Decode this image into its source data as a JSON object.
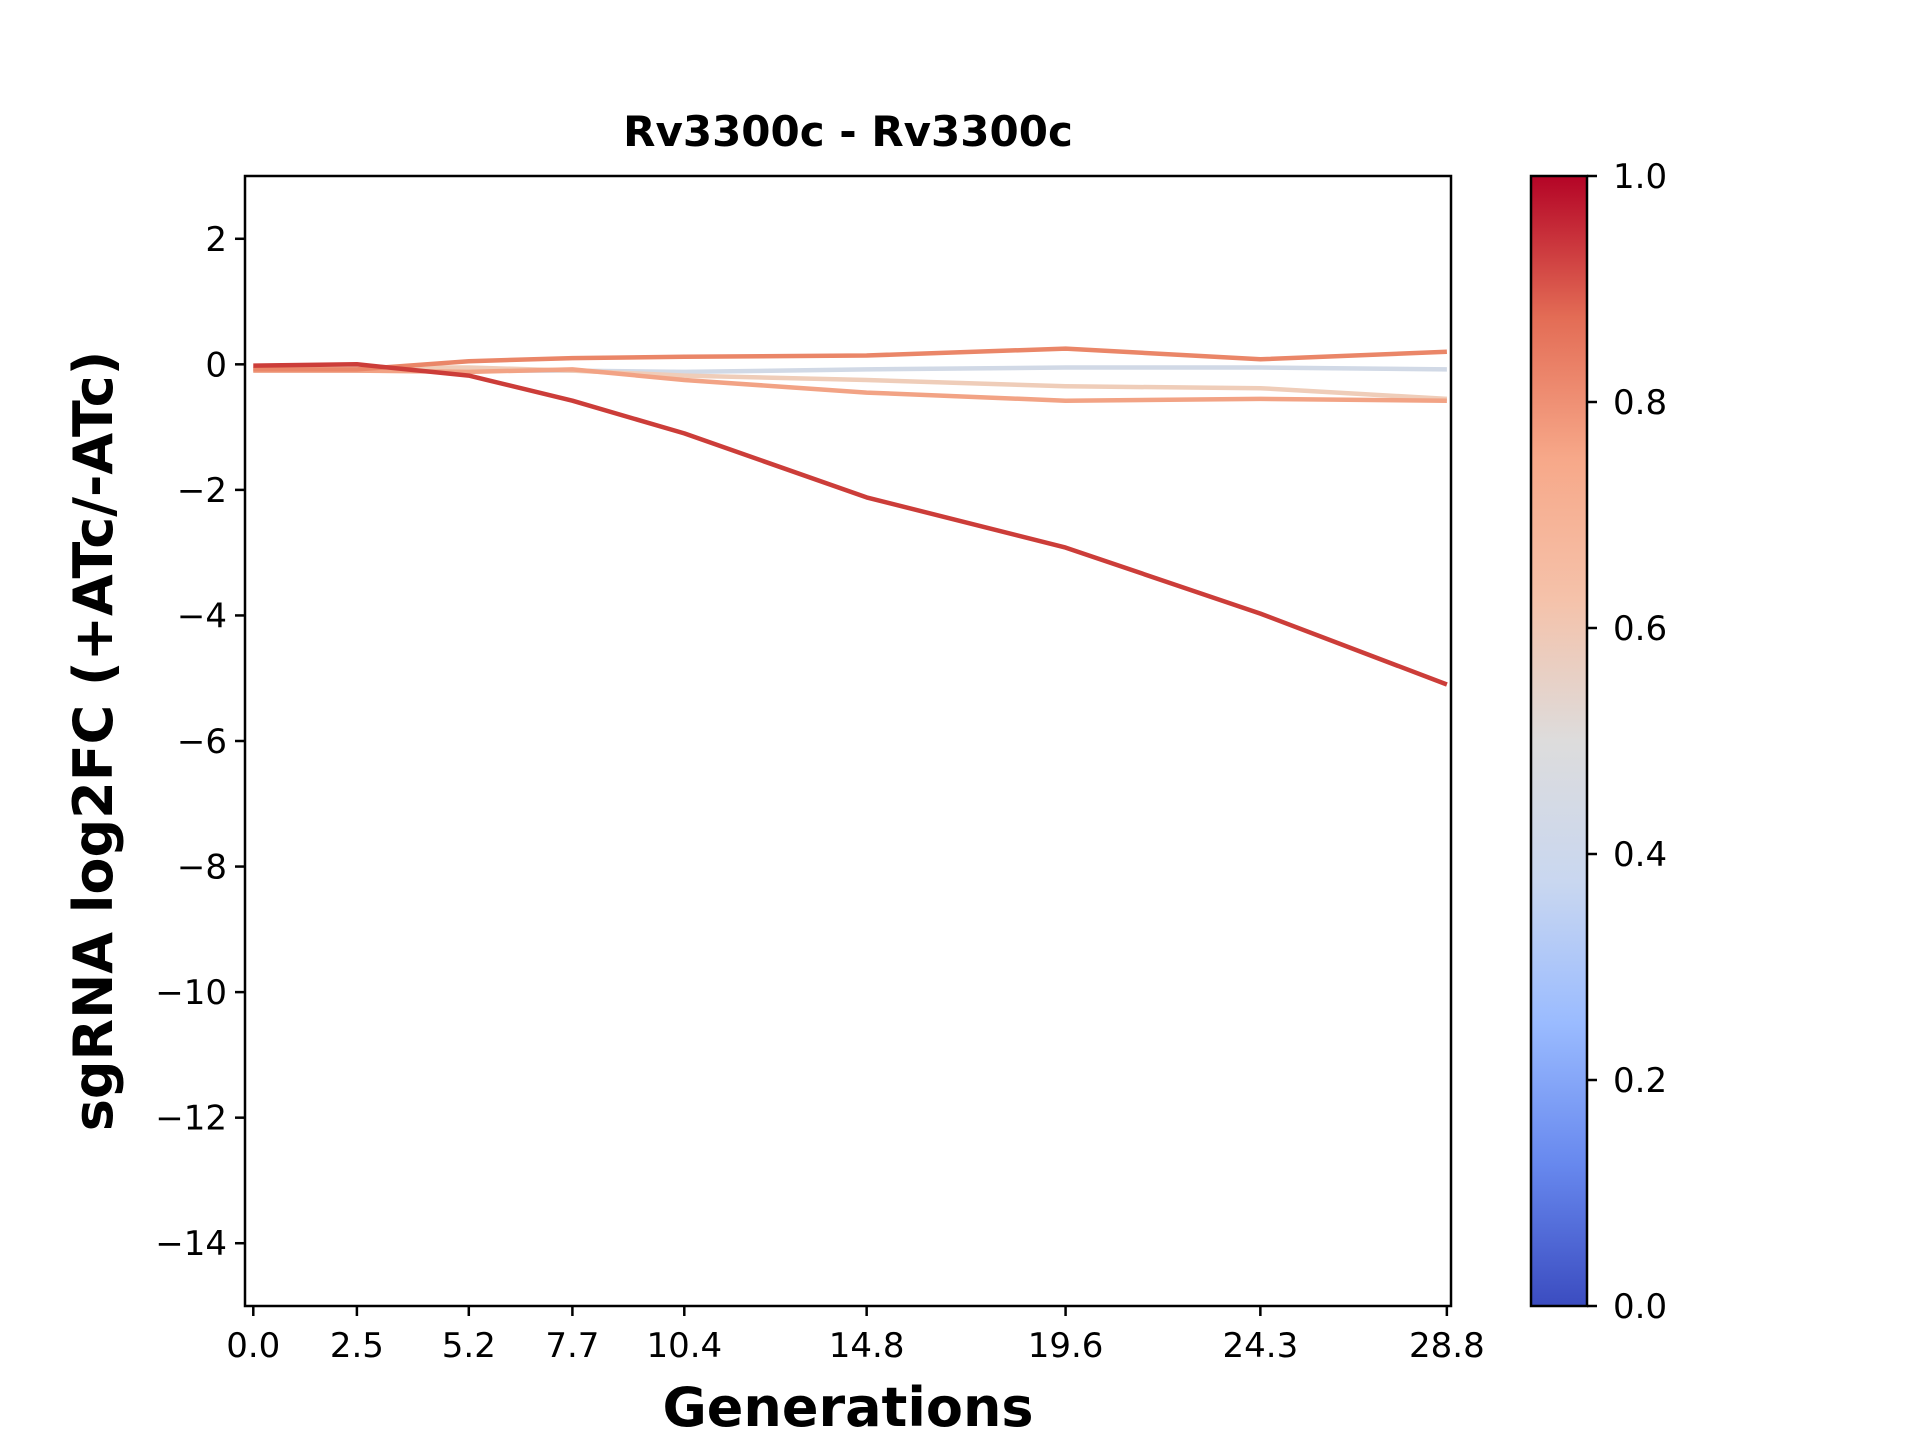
{
  "chart_data": {
    "type": "line",
    "title": "Rv3300c - Rv3300c",
    "xlabel": "Generations",
    "ylabel": "sgRNA log2FC (+ATc/-ATc)",
    "x": [
      0.0,
      2.5,
      5.2,
      7.7,
      10.4,
      14.8,
      19.6,
      24.3,
      28.8
    ],
    "x_tick_labels": [
      "0.0",
      "2.5",
      "5.2",
      "7.7",
      "10.4",
      "14.8",
      "19.6",
      "24.3",
      "28.8"
    ],
    "xlim": [
      -0.2,
      28.9
    ],
    "ylim": [
      -15,
      3
    ],
    "y_ticks": [
      2,
      0,
      -2,
      -4,
      -6,
      -8,
      -10,
      -12,
      -14
    ],
    "y_tick_labels": [
      "2",
      "0",
      "−2",
      "−4",
      "−6",
      "−8",
      "−10",
      "−12",
      "−14"
    ],
    "grid": false,
    "series": [
      {
        "color_value": 0.45,
        "color": "#d1d9e6",
        "values": [
          -0.1,
          -0.1,
          -0.1,
          -0.1,
          -0.12,
          -0.08,
          -0.05,
          -0.05,
          -0.08
        ]
      },
      {
        "color_value": 0.6,
        "color": "#efcdb9",
        "values": [
          -0.05,
          -0.05,
          -0.05,
          -0.1,
          -0.18,
          -0.25,
          -0.35,
          -0.38,
          -0.55
        ]
      },
      {
        "color_value": 0.72,
        "color": "#f2a385",
        "values": [
          -0.1,
          -0.1,
          -0.12,
          -0.08,
          -0.25,
          -0.45,
          -0.58,
          -0.55,
          -0.58
        ]
      },
      {
        "color_value": 0.8,
        "color": "#ea8668",
        "values": [
          -0.08,
          -0.08,
          0.05,
          0.1,
          0.12,
          0.14,
          0.25,
          0.08,
          0.2
        ]
      },
      {
        "color_value": 0.93,
        "color": "#cc3d39",
        "values": [
          -0.02,
          0.0,
          -0.18,
          -0.58,
          -1.1,
          -2.12,
          -2.92,
          -3.97,
          -5.1
        ]
      }
    ],
    "colorbar": {
      "range": [
        0.0,
        1.0
      ],
      "ticks": [
        "0.0",
        "0.2",
        "0.4",
        "0.6",
        "0.8",
        "1.0"
      ],
      "colormap": "coolwarm",
      "stops": [
        "#3b4cc0",
        "#6788ee",
        "#9abbff",
        "#c9d7f0",
        "#dddcdc",
        "#f5c2aa",
        "#f7a889",
        "#e36c55",
        "#b40426"
      ]
    }
  }
}
